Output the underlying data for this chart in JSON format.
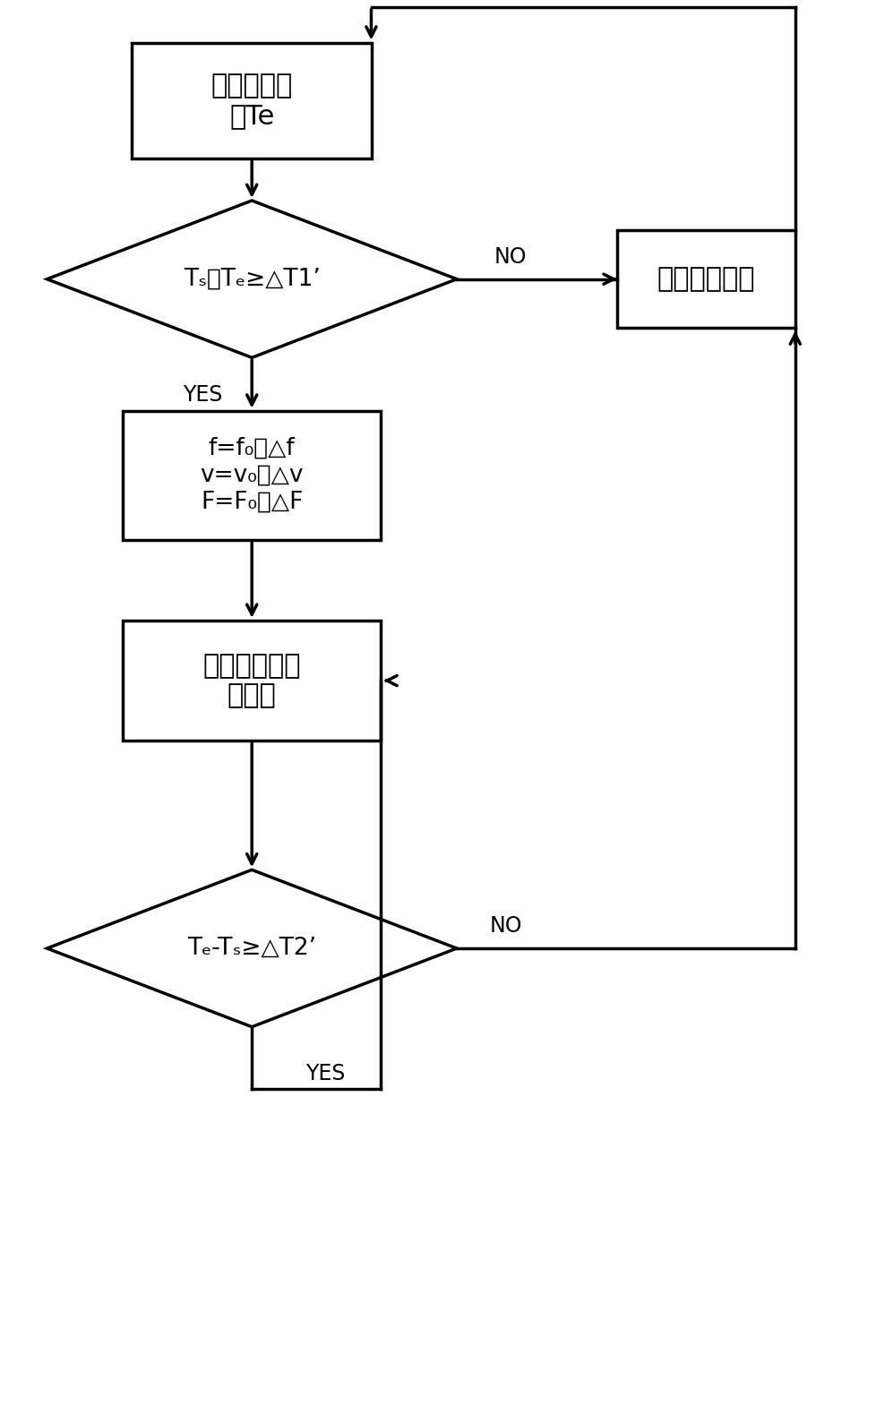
{
  "bg_color": "#ffffff",
  "line_color": "#000000",
  "figsize": [
    9.97,
    15.69
  ],
  "dpi": 100,
  "box1_text": "监测房间温\n度Te",
  "diamond1_text": "Tₛ－Tₑ≥△T1’",
  "box2_line1": "f=f₀－△f",
  "box2_line2": "v=v₀－△v",
  "box2_line3": "F=F₀＋△F",
  "box3_text": "进入低扰动送\n风模式",
  "diamond2_text": "Tₑ-Tₛ≥△T2’",
  "boxR_text": "正常制冷模式",
  "label_no1": "NO",
  "label_yes1": "YES",
  "label_no2": "NO",
  "label_yes2": "YES",
  "lw": 2.5,
  "arrow_scale": 20,
  "fontsize_chinese": 22,
  "fontsize_formula": 19,
  "fontsize_label": 17
}
